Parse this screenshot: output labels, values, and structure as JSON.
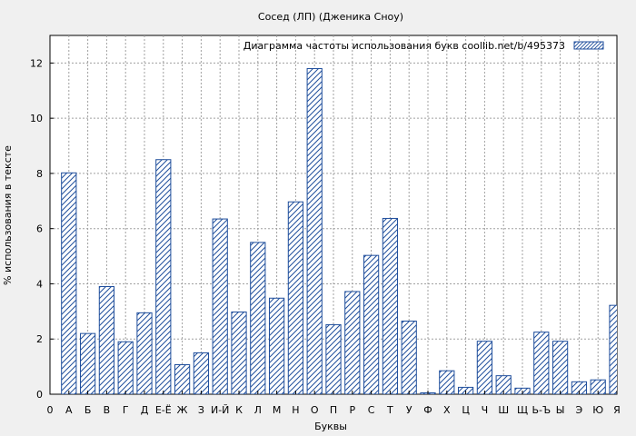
{
  "chart_data": {
    "type": "bar",
    "title": "Сосед (ЛП) (Дженика Сноу)",
    "xlabel": "Буквы",
    "ylabel": "% использования в тексте",
    "legend": {
      "label": "Диаграмма частоты использования букв  coollib.net/b/495373",
      "position": "top-right"
    },
    "ylim": [
      0,
      13
    ],
    "yticks": [
      0,
      2,
      4,
      6,
      8,
      10,
      12
    ],
    "grid": true,
    "x_tick_labels": [
      "0",
      "А",
      "Б",
      "В",
      "Г",
      "Д",
      "Е-Ё",
      "Ж",
      "З",
      "И-Й",
      "К",
      "Л",
      "М",
      "Н",
      "О",
      "П",
      "Р",
      "С",
      "Т",
      "У",
      "Ф",
      "Х",
      "Ц",
      "Ч",
      "Ш",
      "Щ",
      "Ь-Ъ",
      "Ы",
      "Э",
      "Ю",
      "Я"
    ],
    "categories": [
      "А",
      "Б",
      "В",
      "Г",
      "Д",
      "Е-Ё",
      "Ж",
      "З",
      "И-Й",
      "К",
      "Л",
      "М",
      "Н",
      "О",
      "П",
      "Р",
      "С",
      "Т",
      "У",
      "Ф",
      "Х",
      "Ц",
      "Ч",
      "Ш",
      "Щ",
      "Ь-Ъ",
      "Ы",
      "Э",
      "Ю",
      "Я"
    ],
    "values": [
      8.02,
      2.2,
      3.9,
      1.9,
      2.95,
      8.5,
      1.07,
      1.5,
      6.35,
      2.98,
      5.5,
      3.48,
      6.97,
      11.8,
      2.52,
      3.72,
      5.03,
      6.37,
      2.65,
      0.05,
      0.85,
      0.25,
      1.92,
      0.67,
      0.22,
      2.25,
      1.92,
      0.45,
      0.52,
      3.22
    ],
    "colors": {
      "background": "#f0f0f0",
      "plot_background": "#ffffff",
      "bar_stroke": "#1f4e9c",
      "bar_hatch": "#1f4e9c",
      "grid": "#a0a0a0"
    }
  }
}
